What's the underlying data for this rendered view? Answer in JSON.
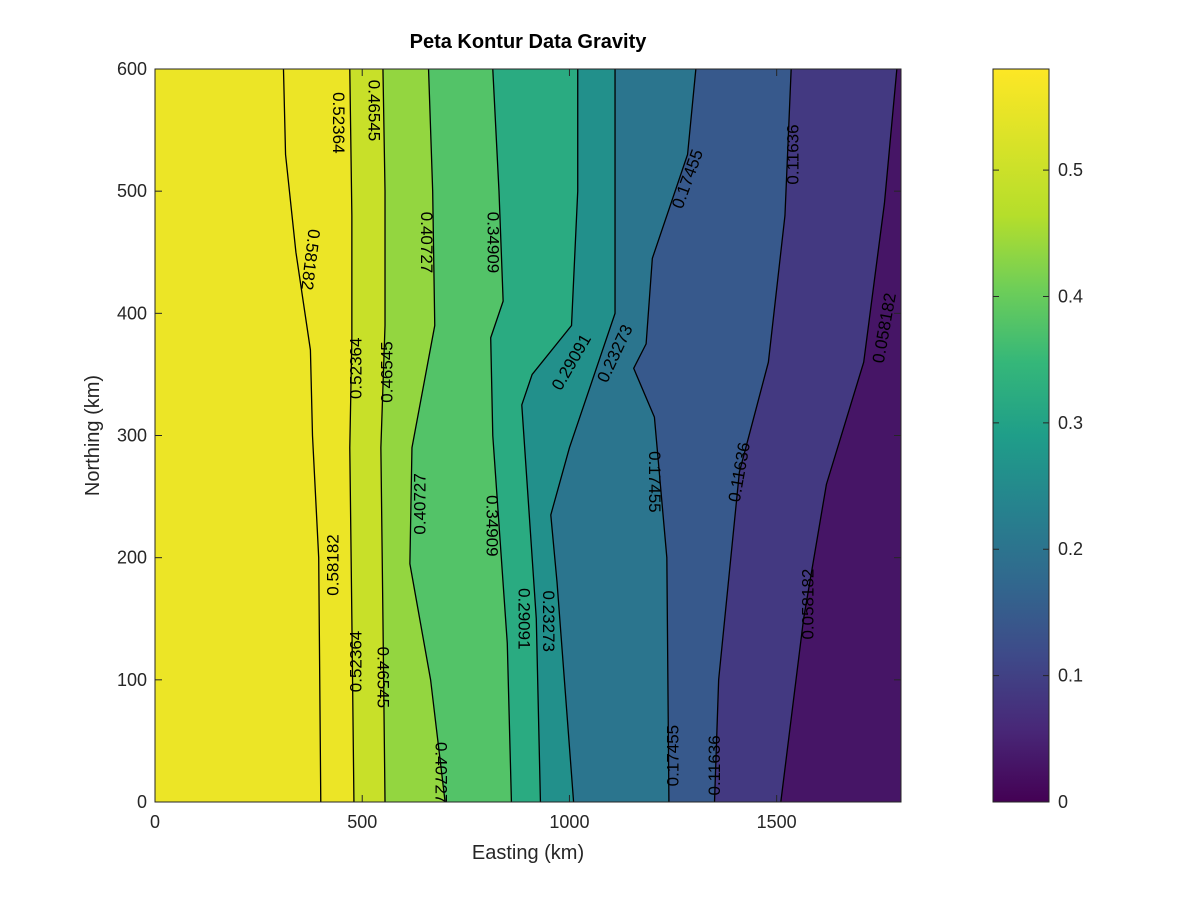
{
  "chart_data": {
    "type": "contour",
    "title": "Peta Kontur Data Gravity",
    "xlabel": "Easting (km)",
    "ylabel": "Northing (km)",
    "xlim": [
      0,
      1800
    ],
    "ylim": [
      0,
      600
    ],
    "xticks": [
      0,
      500,
      1000,
      1500
    ],
    "yticks": [
      0,
      100,
      200,
      300,
      400,
      500,
      600
    ],
    "colorbar": {
      "colormap": "viridis",
      "lim": [
        0,
        0.58
      ],
      "ticks": [
        0,
        0.1,
        0.2,
        0.3,
        0.4,
        0.5
      ],
      "tick_labels": [
        "0",
        "0.1",
        "0.2",
        "0.3",
        "0.4",
        "0.5"
      ]
    },
    "levels": [
      {
        "value": 0.58182,
        "label": "0.58182",
        "points": [
          [
            400,
            0
          ],
          [
            395,
            200
          ],
          [
            380,
            300
          ],
          [
            375,
            370
          ],
          [
            340,
            450
          ],
          [
            315,
            530
          ],
          [
            310,
            600
          ]
        ]
      },
      {
        "value": 0.52364,
        "label": "0.52364",
        "points": [
          [
            480,
            0
          ],
          [
            475,
            150
          ],
          [
            470,
            290
          ],
          [
            475,
            380
          ],
          [
            475,
            480
          ],
          [
            470,
            600
          ]
        ]
      },
      {
        "value": 0.46545,
        "label": "0.46545",
        "points": [
          [
            555,
            0
          ],
          [
            550,
            150
          ],
          [
            545,
            290
          ],
          [
            555,
            390
          ],
          [
            555,
            500
          ],
          [
            550,
            600
          ]
        ]
      },
      {
        "value": 0.40727,
        "label": "0.40727",
        "points": [
          [
            700,
            0
          ],
          [
            665,
            100
          ],
          [
            615,
            195
          ],
          [
            620,
            290
          ],
          [
            675,
            390
          ],
          [
            670,
            500
          ],
          [
            660,
            600
          ]
        ]
      },
      {
        "value": 0.34909,
        "label": "0.34909",
        "points": [
          [
            860,
            0
          ],
          [
            850,
            130
          ],
          [
            815,
            300
          ],
          [
            810,
            380
          ],
          [
            840,
            410
          ],
          [
            830,
            500
          ],
          [
            815,
            600
          ]
        ]
      },
      {
        "value": 0.29091,
        "label": "0.29091",
        "points": [
          [
            930,
            0
          ],
          [
            920,
            150
          ],
          [
            885,
            325
          ],
          [
            910,
            350
          ],
          [
            1005,
            390
          ],
          [
            1020,
            500
          ],
          [
            1020,
            600
          ]
        ]
      },
      {
        "value": 0.23273,
        "label": "0.23273",
        "points": [
          [
            1010,
            0
          ],
          [
            970,
            180
          ],
          [
            955,
            235
          ],
          [
            1000,
            290
          ],
          [
            1075,
            365
          ],
          [
            1110,
            400
          ],
          [
            1110,
            600
          ]
        ]
      },
      {
        "value": 0.17455,
        "label": "0.17455",
        "points": [
          [
            1240,
            0
          ],
          [
            1235,
            200
          ],
          [
            1205,
            315
          ],
          [
            1155,
            355
          ],
          [
            1185,
            375
          ],
          [
            1200,
            445
          ],
          [
            1285,
            530
          ],
          [
            1305,
            600
          ]
        ]
      },
      {
        "value": 0.11636,
        "label": "0.11636",
        "points": [
          [
            1350,
            0
          ],
          [
            1360,
            100
          ],
          [
            1410,
            270
          ],
          [
            1480,
            360
          ],
          [
            1520,
            480
          ],
          [
            1535,
            600
          ]
        ]
      },
      {
        "value": 0.058182,
        "label": "0.058182",
        "points": [
          [
            1510,
            0
          ],
          [
            1565,
            150
          ],
          [
            1620,
            260
          ],
          [
            1710,
            360
          ],
          [
            1760,
            490
          ],
          [
            1790,
            600
          ]
        ]
      }
    ],
    "contour_labels": [
      {
        "text": "0.58182",
        "x": 375,
        "y": 444,
        "angle": 97
      },
      {
        "text": "0.52364",
        "x": 443,
        "y": 556,
        "angle": 90
      },
      {
        "text": "0.46545",
        "x": 528,
        "y": 566,
        "angle": 90
      },
      {
        "text": "0.40727",
        "x": 655,
        "y": 458,
        "angle": 90
      },
      {
        "text": "0.34909",
        "x": 815,
        "y": 458,
        "angle": 90
      },
      {
        "text": "0.17455",
        "x": 1285,
        "y": 510,
        "angle": -70
      },
      {
        "text": "0.11636",
        "x": 1540,
        "y": 530,
        "angle": -90
      },
      {
        "text": "0.058182",
        "x": 1760,
        "y": 388,
        "angle": -80
      },
      {
        "text": "0.52364",
        "x": 485,
        "y": 355,
        "angle": -90
      },
      {
        "text": "0.46545",
        "x": 560,
        "y": 352,
        "angle": -90
      },
      {
        "text": "0.29091",
        "x": 1005,
        "y": 360,
        "angle": -60
      },
      {
        "text": "0.23273",
        "x": 1110,
        "y": 367,
        "angle": -65
      },
      {
        "text": "0.17455",
        "x": 1205,
        "y": 262,
        "angle": 90
      },
      {
        "text": "0.11636",
        "x": 1410,
        "y": 270,
        "angle": -80
      },
      {
        "text": "0.40727",
        "x": 640,
        "y": 244,
        "angle": -90
      },
      {
        "text": "0.34909",
        "x": 813,
        "y": 226,
        "angle": 90
      },
      {
        "text": "0.58182",
        "x": 430,
        "y": 194,
        "angle": -90
      },
      {
        "text": "0.058182",
        "x": 1575,
        "y": 162,
        "angle": -90
      },
      {
        "text": "0.29091",
        "x": 890,
        "y": 150,
        "angle": 90
      },
      {
        "text": "0.23273",
        "x": 950,
        "y": 148,
        "angle": 90
      },
      {
        "text": "0.52364",
        "x": 485,
        "y": 115,
        "angle": -90
      },
      {
        "text": "0.46545",
        "x": 550,
        "y": 102,
        "angle": 90
      },
      {
        "text": "0.40727",
        "x": 690,
        "y": 24,
        "angle": 90
      },
      {
        "text": "0.17455",
        "x": 1250,
        "y": 38,
        "angle": -90
      },
      {
        "text": "0.11636",
        "x": 1350,
        "y": 30,
        "angle": -90
      }
    ]
  }
}
